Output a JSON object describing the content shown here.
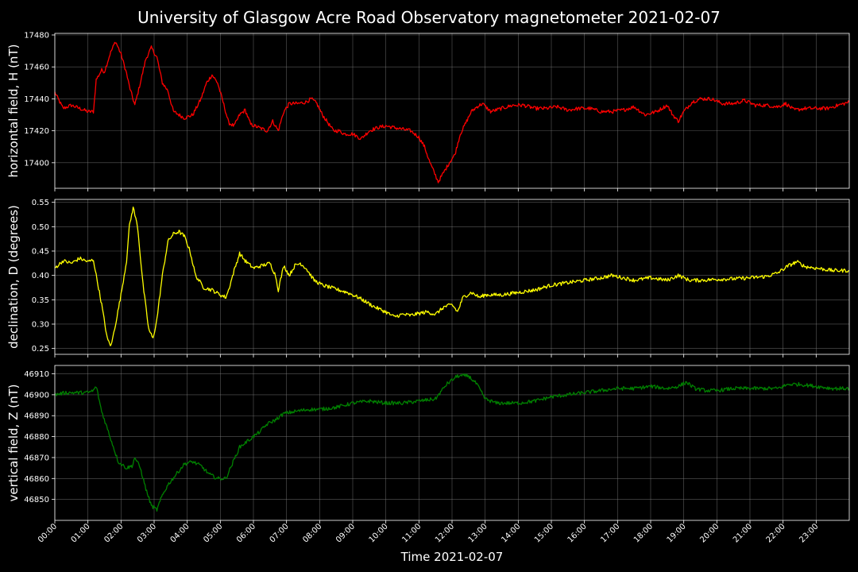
{
  "chart_data": {
    "title": "University of Glasgow Acre Road Observatory magnetometer 2021-02-07",
    "xlabel": "Time 2021-02-07",
    "x_ticks": [
      "00:00",
      "01:00",
      "02:00",
      "03:00",
      "04:00",
      "05:00",
      "06:00",
      "07:00",
      "08:00",
      "09:00",
      "10:00",
      "11:00",
      "12:00",
      "13:00",
      "14:00",
      "15:00",
      "16:00",
      "17:00",
      "18:00",
      "19:00",
      "20:00",
      "21:00",
      "22:00",
      "23:00"
    ],
    "xlim": [
      "00:00",
      "24:00"
    ],
    "grid": true,
    "panels": [
      {
        "type": "line",
        "ylabel": "horizontal field, H (nT)",
        "color": "#ff0000",
        "ylim": [
          17384,
          17481
        ],
        "y_ticks": [
          "17400",
          "17420",
          "17440",
          "17460",
          "17480"
        ],
        "y_tick_values": [
          17400,
          17420,
          17440,
          17460,
          17480
        ],
        "series_points": [
          [
            "00:00",
            17444
          ],
          [
            "00:15",
            17434
          ],
          [
            "00:30",
            17436
          ],
          [
            "00:45",
            17434
          ],
          [
            "01:00",
            17432
          ],
          [
            "01:10",
            17432
          ],
          [
            "01:15",
            17452
          ],
          [
            "01:25",
            17458
          ],
          [
            "01:30",
            17457
          ],
          [
            "01:40",
            17468
          ],
          [
            "01:50",
            17476
          ],
          [
            "02:00",
            17468
          ],
          [
            "02:10",
            17456
          ],
          [
            "02:15",
            17448
          ],
          [
            "02:25",
            17436
          ],
          [
            "02:35",
            17450
          ],
          [
            "02:45",
            17465
          ],
          [
            "02:55",
            17472
          ],
          [
            "03:05",
            17466
          ],
          [
            "03:15",
            17450
          ],
          [
            "03:25",
            17445
          ],
          [
            "03:35",
            17432
          ],
          [
            "03:45",
            17430
          ],
          [
            "03:55",
            17428
          ],
          [
            "04:10",
            17430
          ],
          [
            "04:25",
            17440
          ],
          [
            "04:35",
            17450
          ],
          [
            "04:45",
            17455
          ],
          [
            "04:55",
            17450
          ],
          [
            "05:05",
            17438
          ],
          [
            "05:15",
            17425
          ],
          [
            "05:25",
            17423
          ],
          [
            "05:35",
            17430
          ],
          [
            "05:45",
            17433
          ],
          [
            "05:55",
            17424
          ],
          [
            "06:10",
            17422
          ],
          [
            "06:25",
            17420
          ],
          [
            "06:35",
            17426
          ],
          [
            "06:45",
            17420
          ],
          [
            "06:55",
            17432
          ],
          [
            "07:05",
            17437
          ],
          [
            "07:20",
            17437
          ],
          [
            "07:35",
            17438
          ],
          [
            "07:45",
            17440
          ],
          [
            "07:55",
            17437
          ],
          [
            "08:05",
            17430
          ],
          [
            "08:15",
            17425
          ],
          [
            "08:25",
            17420
          ],
          [
            "08:35",
            17420
          ],
          [
            "08:45",
            17418
          ],
          [
            "09:00",
            17418
          ],
          [
            "09:15",
            17415
          ],
          [
            "09:30",
            17420
          ],
          [
            "09:45",
            17422
          ],
          [
            "10:00",
            17423
          ],
          [
            "10:15",
            17422
          ],
          [
            "10:30",
            17421
          ],
          [
            "10:45",
            17420
          ],
          [
            "11:00",
            17416
          ],
          [
            "11:10",
            17410
          ],
          [
            "11:20",
            17400
          ],
          [
            "11:30",
            17392
          ],
          [
            "11:35",
            17388
          ],
          [
            "11:45",
            17394
          ],
          [
            "11:55",
            17400
          ],
          [
            "12:05",
            17405
          ],
          [
            "12:15",
            17418
          ],
          [
            "12:25",
            17425
          ],
          [
            "12:35",
            17432
          ],
          [
            "12:45",
            17435
          ],
          [
            "12:55",
            17437
          ],
          [
            "13:10",
            17432
          ],
          [
            "13:30",
            17434
          ],
          [
            "13:50",
            17436
          ],
          [
            "14:10",
            17436
          ],
          [
            "14:30",
            17434
          ],
          [
            "14:50",
            17434
          ],
          [
            "15:10",
            17435
          ],
          [
            "15:30",
            17433
          ],
          [
            "15:50",
            17434
          ],
          [
            "16:10",
            17434
          ],
          [
            "16:30",
            17432
          ],
          [
            "16:50",
            17432
          ],
          [
            "17:10",
            17433
          ],
          [
            "17:30",
            17435
          ],
          [
            "17:50",
            17430
          ],
          [
            "18:10",
            17432
          ],
          [
            "18:30",
            17436
          ],
          [
            "18:40",
            17430
          ],
          [
            "18:50",
            17426
          ],
          [
            "19:00",
            17432
          ],
          [
            "19:15",
            17438
          ],
          [
            "19:30",
            17440
          ],
          [
            "19:50",
            17440
          ],
          [
            "20:10",
            17437
          ],
          [
            "20:30",
            17437
          ],
          [
            "20:50",
            17439
          ],
          [
            "21:10",
            17436
          ],
          [
            "21:30",
            17436
          ],
          [
            "21:50",
            17435
          ],
          [
            "22:05",
            17437
          ],
          [
            "22:20",
            17433
          ],
          [
            "22:40",
            17434
          ],
          [
            "23:00",
            17434
          ],
          [
            "23:20",
            17434
          ],
          [
            "23:40",
            17436
          ],
          [
            "24:00",
            17438
          ]
        ]
      },
      {
        "type": "line",
        "ylabel": "declination, D (degrees)",
        "color": "#ffff00",
        "ylim": [
          0.238,
          0.556
        ],
        "y_ticks": [
          "0.25",
          "0.30",
          "0.35",
          "0.40",
          "0.45",
          "0.50",
          "0.55"
        ],
        "y_tick_values": [
          0.25,
          0.3,
          0.35,
          0.4,
          0.45,
          0.5,
          0.55
        ],
        "series_points": [
          [
            "00:00",
            0.415
          ],
          [
            "00:15",
            0.43
          ],
          [
            "00:30",
            0.425
          ],
          [
            "00:45",
            0.435
          ],
          [
            "01:00",
            0.428
          ],
          [
            "01:10",
            0.432
          ],
          [
            "01:15",
            0.4
          ],
          [
            "01:25",
            0.34
          ],
          [
            "01:35",
            0.27
          ],
          [
            "01:42",
            0.255
          ],
          [
            "01:50",
            0.3
          ],
          [
            "02:00",
            0.36
          ],
          [
            "02:10",
            0.43
          ],
          [
            "02:15",
            0.5
          ],
          [
            "02:22",
            0.54
          ],
          [
            "02:30",
            0.5
          ],
          [
            "02:40",
            0.38
          ],
          [
            "02:50",
            0.29
          ],
          [
            "02:58",
            0.27
          ],
          [
            "03:05",
            0.31
          ],
          [
            "03:15",
            0.4
          ],
          [
            "03:25",
            0.47
          ],
          [
            "03:35",
            0.485
          ],
          [
            "03:45",
            0.49
          ],
          [
            "03:55",
            0.48
          ],
          [
            "04:05",
            0.45
          ],
          [
            "04:15",
            0.4
          ],
          [
            "04:30",
            0.375
          ],
          [
            "04:45",
            0.37
          ],
          [
            "05:00",
            0.36
          ],
          [
            "05:10",
            0.355
          ],
          [
            "05:15",
            0.37
          ],
          [
            "05:25",
            0.41
          ],
          [
            "05:35",
            0.445
          ],
          [
            "05:45",
            0.43
          ],
          [
            "06:00",
            0.415
          ],
          [
            "06:15",
            0.42
          ],
          [
            "06:30",
            0.425
          ],
          [
            "06:40",
            0.4
          ],
          [
            "06:45",
            0.37
          ],
          [
            "06:55",
            0.42
          ],
          [
            "07:05",
            0.4
          ],
          [
            "07:15",
            0.42
          ],
          [
            "07:25",
            0.425
          ],
          [
            "07:35",
            0.415
          ],
          [
            "07:50",
            0.39
          ],
          [
            "08:05",
            0.38
          ],
          [
            "08:20",
            0.375
          ],
          [
            "08:35",
            0.37
          ],
          [
            "08:50",
            0.365
          ],
          [
            "09:10",
            0.355
          ],
          [
            "09:25",
            0.345
          ],
          [
            "09:40",
            0.335
          ],
          [
            "10:00",
            0.325
          ],
          [
            "10:15",
            0.315
          ],
          [
            "10:30",
            0.32
          ],
          [
            "10:45",
            0.318
          ],
          [
            "11:00",
            0.322
          ],
          [
            "11:15",
            0.325
          ],
          [
            "11:30",
            0.32
          ],
          [
            "11:45",
            0.335
          ],
          [
            "12:00",
            0.34
          ],
          [
            "12:10",
            0.325
          ],
          [
            "12:20",
            0.355
          ],
          [
            "12:35",
            0.365
          ],
          [
            "12:50",
            0.355
          ],
          [
            "13:00",
            0.36
          ],
          [
            "13:30",
            0.36
          ],
          [
            "14:00",
            0.365
          ],
          [
            "14:30",
            0.37
          ],
          [
            "15:00",
            0.38
          ],
          [
            "15:30",
            0.385
          ],
          [
            "16:00",
            0.39
          ],
          [
            "16:30",
            0.395
          ],
          [
            "16:50",
            0.4
          ],
          [
            "17:10",
            0.395
          ],
          [
            "17:30",
            0.39
          ],
          [
            "18:00",
            0.395
          ],
          [
            "18:30",
            0.39
          ],
          [
            "18:50",
            0.4
          ],
          [
            "19:10",
            0.39
          ],
          [
            "19:30",
            0.39
          ],
          [
            "20:00",
            0.392
          ],
          [
            "20:30",
            0.393
          ],
          [
            "21:00",
            0.395
          ],
          [
            "21:30",
            0.398
          ],
          [
            "21:50",
            0.405
          ],
          [
            "22:10",
            0.42
          ],
          [
            "22:25",
            0.428
          ],
          [
            "22:40",
            0.418
          ],
          [
            "23:00",
            0.415
          ],
          [
            "23:30",
            0.41
          ],
          [
            "24:00",
            0.41
          ]
        ]
      },
      {
        "type": "line",
        "ylabel": "vertical field, Z (nT)",
        "color": "#008000",
        "ylim": [
          46840,
          46914
        ],
        "y_ticks": [
          "46850",
          "46860",
          "46870",
          "46880",
          "46890",
          "46900",
          "46910"
        ],
        "y_tick_values": [
          46850,
          46860,
          46870,
          46880,
          46890,
          46900,
          46910
        ],
        "series_points": [
          [
            "00:00",
            46900
          ],
          [
            "00:20",
            46901
          ],
          [
            "00:40",
            46901
          ],
          [
            "01:00",
            46901
          ],
          [
            "01:10",
            46902
          ],
          [
            "01:15",
            46904
          ],
          [
            "01:25",
            46892
          ],
          [
            "01:40",
            46880
          ],
          [
            "01:55",
            46868
          ],
          [
            "02:10",
            46865
          ],
          [
            "02:20",
            46866
          ],
          [
            "02:25",
            46870
          ],
          [
            "02:35",
            46865
          ],
          [
            "02:45",
            46855
          ],
          [
            "02:55",
            46847
          ],
          [
            "03:05",
            46845
          ],
          [
            "03:15",
            46852
          ],
          [
            "03:25",
            46857
          ],
          [
            "03:40",
            46862
          ],
          [
            "03:55",
            46867
          ],
          [
            "04:10",
            46868
          ],
          [
            "04:25",
            46866
          ],
          [
            "04:40",
            46862
          ],
          [
            "04:55",
            46860
          ],
          [
            "05:10",
            46860
          ],
          [
            "05:20",
            46866
          ],
          [
            "05:35",
            46875
          ],
          [
            "05:50",
            46878
          ],
          [
            "06:10",
            46882
          ],
          [
            "06:25",
            46886
          ],
          [
            "06:40",
            46888
          ],
          [
            "06:55",
            46891
          ],
          [
            "07:15",
            46892
          ],
          [
            "07:40",
            46893
          ],
          [
            "08:00",
            46893
          ],
          [
            "08:30",
            46894
          ],
          [
            "09:00",
            46896
          ],
          [
            "09:30",
            46897
          ],
          [
            "10:00",
            46896
          ],
          [
            "10:30",
            46896
          ],
          [
            "11:00",
            46897
          ],
          [
            "11:30",
            46898
          ],
          [
            "11:50",
            46905
          ],
          [
            "12:10",
            46909
          ],
          [
            "12:30",
            46909
          ],
          [
            "12:45",
            46905
          ],
          [
            "13:00",
            46898
          ],
          [
            "13:20",
            46896
          ],
          [
            "13:40",
            46896
          ],
          [
            "14:00",
            46896
          ],
          [
            "14:30",
            46897
          ],
          [
            "15:00",
            46899
          ],
          [
            "15:30",
            46900
          ],
          [
            "16:00",
            46901
          ],
          [
            "16:30",
            46902
          ],
          [
            "17:00",
            46903
          ],
          [
            "17:30",
            46903
          ],
          [
            "18:00",
            46904
          ],
          [
            "18:30",
            46903
          ],
          [
            "18:50",
            46904
          ],
          [
            "19:05",
            46906
          ],
          [
            "19:20",
            46903
          ],
          [
            "19:40",
            46902
          ],
          [
            "20:00",
            46902
          ],
          [
            "20:30",
            46903
          ],
          [
            "21:00",
            46903
          ],
          [
            "21:30",
            46903
          ],
          [
            "21:50",
            46903
          ],
          [
            "22:10",
            46905
          ],
          [
            "22:30",
            46905
          ],
          [
            "23:00",
            46904
          ],
          [
            "23:30",
            46903
          ],
          [
            "24:00",
            46903
          ]
        ]
      }
    ]
  }
}
